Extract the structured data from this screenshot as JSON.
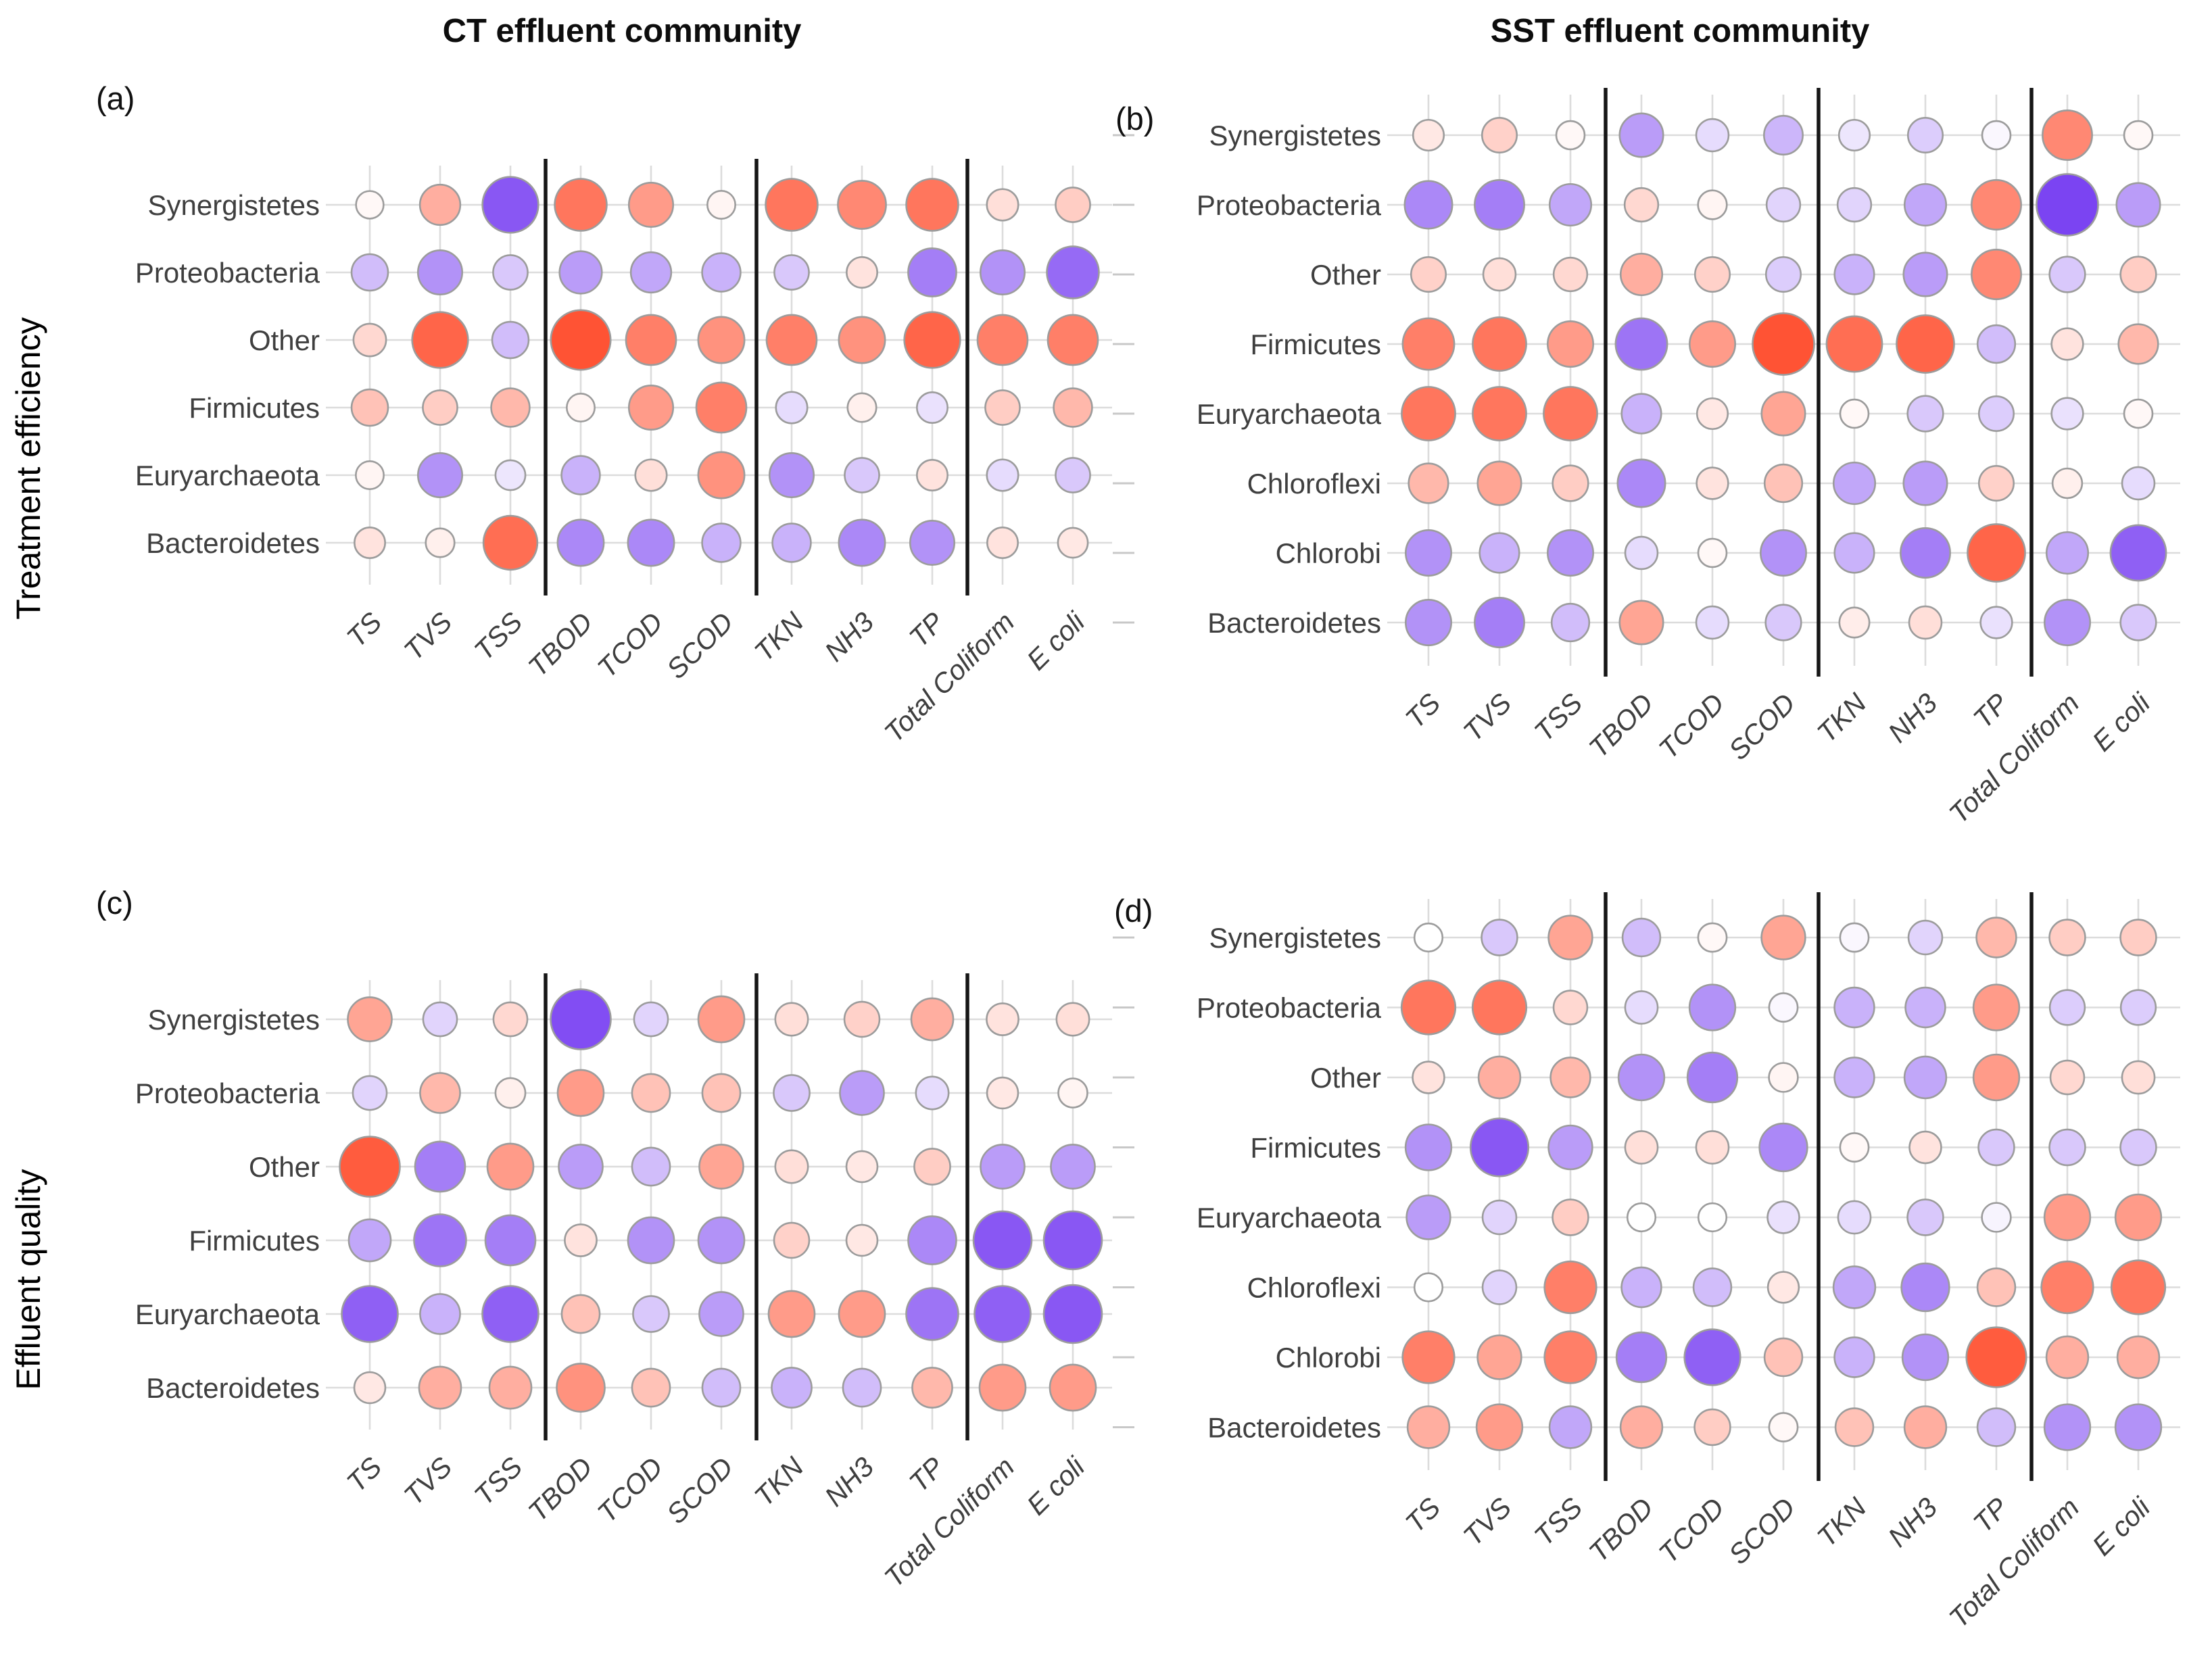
{
  "chart_data": {
    "type": "bubble-correlation",
    "description": "Correlation bubble matrix; circle color encodes sign (orange-red = positive, purple = negative), circle size and saturation encode magnitude",
    "color_positive": "#FF3A16",
    "color_negative": "#6828F0",
    "grid_color": "#dcdcdc",
    "circle_stroke": "#9c9c9c",
    "separator_color": "#161616",
    "column_titles": [
      "CT effluent community",
      "SST effluent community"
    ],
    "row_axis_labels": [
      "Treatment efficiency",
      "Effluent quality"
    ],
    "columns": [
      "TS",
      "TVS",
      "TSS",
      "TBOD",
      "TCOD",
      "SCOD",
      "TKN",
      "NH3",
      "TP",
      "Total Coliform",
      "E coli"
    ],
    "separators_after_columns": [
      "TSS",
      "SCOD",
      "TP"
    ],
    "legend_position": "none",
    "panels": [
      {
        "tag": "(a)",
        "column_title": "CT effluent community",
        "row_axis": "Treatment efficiency",
        "rows": [
          "Synergistetes",
          "Proteobacteria",
          "Other",
          "Firmicutes",
          "Euryarchaeota",
          "Bacteroidetes"
        ],
        "values": [
          [
            0.02,
            0.35,
            -0.75,
            0.65,
            0.45,
            0.03,
            0.65,
            0.55,
            0.65,
            0.12,
            0.2
          ],
          [
            -0.25,
            -0.45,
            -0.2,
            -0.4,
            -0.35,
            -0.3,
            -0.2,
            0.1,
            -0.55,
            -0.45,
            -0.65
          ],
          [
            0.15,
            0.75,
            -0.25,
            0.85,
            0.6,
            0.5,
            0.6,
            0.5,
            0.75,
            0.6,
            0.6
          ],
          [
            0.25,
            0.2,
            0.3,
            0.03,
            0.45,
            0.6,
            -0.12,
            0.05,
            -0.1,
            0.2,
            0.3
          ],
          [
            0.03,
            -0.45,
            -0.08,
            -0.3,
            0.12,
            0.5,
            -0.45,
            -0.2,
            0.1,
            -0.12,
            -0.2
          ],
          [
            0.1,
            0.05,
            0.7,
            -0.5,
            -0.5,
            -0.3,
            -0.3,
            -0.5,
            -0.45,
            0.1,
            0.08
          ]
        ]
      },
      {
        "tag": "(b)",
        "column_title": "SST effluent community",
        "row_axis": "Treatment efficiency",
        "rows": [
          "Synergistetes",
          "Proteobacteria",
          "Other",
          "Firmicutes",
          "Euryarchaeota",
          "Chloroflexi",
          "Chlorobi",
          "Bacteroidetes"
        ],
        "values": [
          [
            0.08,
            0.18,
            0.02,
            -0.4,
            -0.12,
            -0.28,
            -0.08,
            -0.18,
            -0.02,
            0.55,
            0.02
          ],
          [
            -0.5,
            -0.55,
            -0.35,
            0.15,
            0.03,
            -0.15,
            -0.15,
            -0.35,
            0.55,
            -0.85,
            -0.4
          ],
          [
            0.18,
            0.12,
            0.15,
            0.35,
            0.18,
            -0.18,
            -0.3,
            -0.4,
            0.55,
            -0.2,
            0.2
          ],
          [
            0.6,
            0.65,
            0.45,
            -0.6,
            0.45,
            0.85,
            0.7,
            0.75,
            -0.25,
            0.1,
            0.3
          ],
          [
            0.65,
            0.65,
            0.65,
            -0.3,
            0.08,
            0.4,
            0.02,
            -0.2,
            -0.18,
            -0.1,
            0.02
          ],
          [
            0.3,
            0.4,
            0.2,
            -0.5,
            0.1,
            0.25,
            -0.35,
            -0.4,
            0.18,
            0.05,
            -0.12
          ],
          [
            -0.45,
            -0.3,
            -0.45,
            -0.12,
            0.02,
            -0.45,
            -0.3,
            -0.55,
            0.75,
            -0.35,
            -0.7
          ],
          [
            -0.45,
            -0.55,
            -0.25,
            0.4,
            -0.12,
            -0.2,
            0.06,
            0.12,
            -0.1,
            -0.45,
            -0.2
          ]
        ]
      },
      {
        "tag": "(c)",
        "column_title": "CT effluent community",
        "row_axis": "Effluent quality",
        "rows": [
          "Synergistetes",
          "Proteobacteria",
          "Other",
          "Firmicutes",
          "Euryarchaeota",
          "Bacteroidetes"
        ],
        "values": [
          [
            0.4,
            -0.15,
            0.15,
            -0.8,
            -0.15,
            0.45,
            0.12,
            0.18,
            0.35,
            0.1,
            0.12
          ],
          [
            -0.15,
            0.3,
            0.05,
            0.45,
            0.25,
            0.25,
            -0.2,
            -0.4,
            -0.12,
            0.08,
            0.03
          ],
          [
            0.8,
            -0.55,
            0.45,
            -0.4,
            -0.25,
            0.4,
            0.12,
            0.08,
            0.2,
            -0.4,
            -0.4
          ],
          [
            -0.35,
            -0.6,
            -0.55,
            0.1,
            -0.45,
            -0.45,
            0.18,
            0.08,
            -0.5,
            -0.75,
            -0.75
          ],
          [
            -0.7,
            -0.3,
            -0.7,
            0.25,
            -0.2,
            -0.4,
            0.45,
            0.45,
            -0.6,
            -0.7,
            -0.75
          ],
          [
            0.08,
            0.35,
            0.35,
            0.5,
            0.25,
            -0.25,
            -0.3,
            -0.25,
            0.3,
            0.45,
            0.45
          ]
        ]
      },
      {
        "tag": "(d)",
        "column_title": "SST effluent community",
        "row_axis": "Effluent quality",
        "rows": [
          "Synergistetes",
          "Proteobacteria",
          "Other",
          "Firmicutes",
          "Euryarchaeota",
          "Chloroflexi",
          "Chlorobi",
          "Bacteroidetes"
        ],
        "values": [
          [
            0.01,
            -0.2,
            0.4,
            -0.25,
            0.02,
            0.4,
            -0.02,
            -0.15,
            0.3,
            0.2,
            0.2
          ],
          [
            0.65,
            0.65,
            0.15,
            -0.12,
            -0.45,
            -0.02,
            -0.3,
            -0.3,
            0.45,
            -0.18,
            -0.18
          ],
          [
            0.1,
            0.35,
            0.3,
            -0.45,
            -0.55,
            0.03,
            -0.3,
            -0.35,
            0.45,
            0.15,
            0.12
          ],
          [
            -0.45,
            -0.75,
            -0.4,
            0.12,
            0.12,
            -0.5,
            0.02,
            0.1,
            -0.2,
            -0.2,
            -0.2
          ],
          [
            -0.4,
            -0.15,
            0.2,
            0.01,
            0.01,
            -0.1,
            -0.12,
            -0.2,
            -0.03,
            0.45,
            0.45
          ],
          [
            0.01,
            -0.15,
            0.6,
            -0.3,
            -0.25,
            0.08,
            -0.35,
            -0.5,
            0.25,
            0.6,
            0.65
          ],
          [
            0.6,
            0.4,
            0.6,
            -0.55,
            -0.7,
            0.25,
            -0.3,
            -0.45,
            0.8,
            0.35,
            0.35
          ],
          [
            0.35,
            0.45,
            -0.35,
            0.35,
            0.2,
            0.02,
            0.25,
            0.35,
            -0.25,
            -0.45,
            -0.45
          ]
        ]
      }
    ]
  }
}
